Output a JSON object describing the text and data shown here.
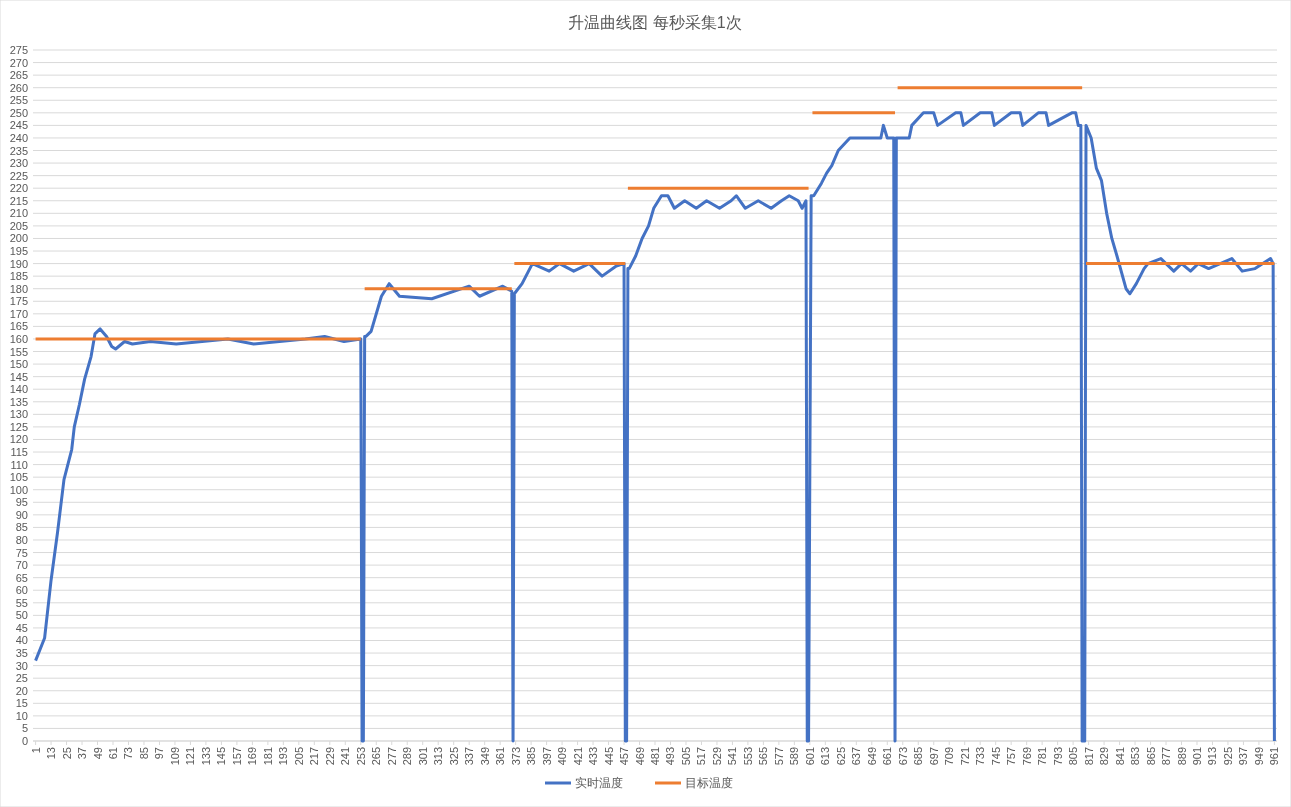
{
  "chart_data": {
    "type": "line",
    "title": "升温曲线图 每秒采集1次",
    "xlim": [
      -1,
      963
    ],
    "ylim": [
      0,
      275
    ],
    "xticks": [
      1,
      13,
      25,
      37,
      49,
      61,
      73,
      85,
      97,
      109,
      121,
      133,
      145,
      157,
      169,
      181,
      193,
      205,
      217,
      229,
      241,
      253,
      265,
      277,
      289,
      301,
      313,
      325,
      337,
      349,
      361,
      373,
      385,
      397,
      409,
      421,
      433,
      445,
      457,
      469,
      481,
      493,
      505,
      517,
      529,
      541,
      553,
      565,
      577,
      589,
      601,
      613,
      625,
      637,
      649,
      661,
      673,
      685,
      697,
      709,
      721,
      733,
      745,
      757,
      769,
      781,
      793,
      805,
      817,
      829,
      841,
      853,
      865,
      877,
      889,
      901,
      913,
      925,
      937,
      949,
      961
    ],
    "yticks": [
      0,
      5,
      10,
      15,
      20,
      25,
      30,
      35,
      40,
      45,
      50,
      55,
      60,
      65,
      70,
      75,
      80,
      85,
      90,
      95,
      100,
      105,
      110,
      115,
      120,
      125,
      130,
      135,
      140,
      145,
      150,
      155,
      160,
      165,
      170,
      175,
      180,
      185,
      190,
      195,
      200,
      205,
      210,
      215,
      220,
      225,
      230,
      235,
      240,
      245,
      250,
      255,
      260,
      265,
      270,
      275
    ],
    "grid": "y",
    "legend": "bottom",
    "marker": "none",
    "line_style": "solid",
    "series": [
      {
        "name": "实时温度",
        "color": "#4472c4",
        "x": [
          1,
          8,
          13,
          18,
          23,
          29,
          31,
          35,
          39,
          44,
          47,
          51,
          56,
          60,
          63,
          70,
          76,
          90,
          110,
          130,
          150,
          170,
          190,
          210,
          225,
          240,
          253,
          254,
          255,
          256,
          257,
          261,
          269,
          275,
          283,
          308,
          337,
          345,
          363,
          370,
          371,
          372,
          378,
          386,
          399,
          407,
          418,
          430,
          440,
          451,
          457,
          458,
          459,
          460,
          461,
          466,
          471,
          476,
          480,
          486,
          491,
          496,
          504,
          513,
          521,
          531,
          540,
          544,
          551,
          561,
          571,
          579,
          585,
          592,
          595,
          598,
          599,
          600,
          602,
          603,
          604,
          610,
          614,
          618,
          623,
          632,
          656,
          658,
          661,
          666,
          667,
          668,
          678,
          680,
          689,
          697,
          700,
          714,
          718,
          720,
          733,
          742,
          744,
          757,
          764,
          766,
          778,
          784,
          786,
          804,
          807,
          809,
          811,
          812,
          814,
          815,
          819,
          823,
          827,
          831,
          835,
          839,
          846,
          849,
          854,
          860,
          863,
          873,
          883,
          889,
          896,
          902,
          910,
          928,
          936,
          946,
          958,
          960,
          961
        ],
        "values": [
          32,
          41,
          64,
          83,
          104,
          116,
          125,
          134,
          144,
          153,
          162,
          164,
          161,
          157,
          156,
          159,
          158,
          159,
          158,
          159,
          160,
          158,
          159,
          160,
          161,
          159,
          160,
          0,
          0,
          161,
          161,
          163,
          177,
          182,
          177,
          176,
          181,
          177,
          181,
          179,
          0,
          178,
          182,
          190,
          187,
          190,
          187,
          190,
          185,
          189,
          190,
          0,
          0,
          188,
          188,
          193,
          200,
          205,
          212,
          217,
          217,
          212,
          215,
          212,
          215,
          212,
          215,
          217,
          212,
          215,
          212,
          215,
          217,
          215,
          212,
          215,
          0,
          0,
          217,
          217,
          217,
          222,
          226,
          229,
          235,
          240,
          240,
          245,
          240,
          240,
          0,
          240,
          240,
          245,
          250,
          250,
          245,
          250,
          250,
          245,
          250,
          250,
          245,
          250,
          250,
          245,
          250,
          250,
          245,
          250,
          250,
          245,
          245,
          0,
          0,
          245,
          240,
          228,
          223,
          210,
          200,
          193,
          180,
          178,
          182,
          188,
          190,
          192,
          187,
          190,
          187,
          190,
          188,
          192,
          187,
          188,
          192,
          190,
          0
        ]
      },
      {
        "name": "目标温度",
        "color": "#ed7d31",
        "x": [
          1,
          253
        ],
        "values": [
          160,
          160
        ]
      },
      {
        "color": "#ed7d31",
        "x": [
          256,
          370
        ],
        "values": [
          180,
          180
        ]
      },
      {
        "color": "#ed7d31",
        "x": [
          372,
          458
        ],
        "values": [
          190,
          190
        ]
      },
      {
        "color": "#ed7d31",
        "x": [
          460,
          600
        ],
        "values": [
          220,
          220
        ]
      },
      {
        "color": "#ed7d31",
        "x": [
          603,
          667
        ],
        "values": [
          250,
          250
        ]
      },
      {
        "color": "#ed7d31",
        "x": [
          669,
          812
        ],
        "values": [
          260,
          260
        ]
      },
      {
        "color": "#ed7d31",
        "x": [
          815,
          961
        ],
        "values": [
          190,
          190
        ]
      }
    ]
  }
}
